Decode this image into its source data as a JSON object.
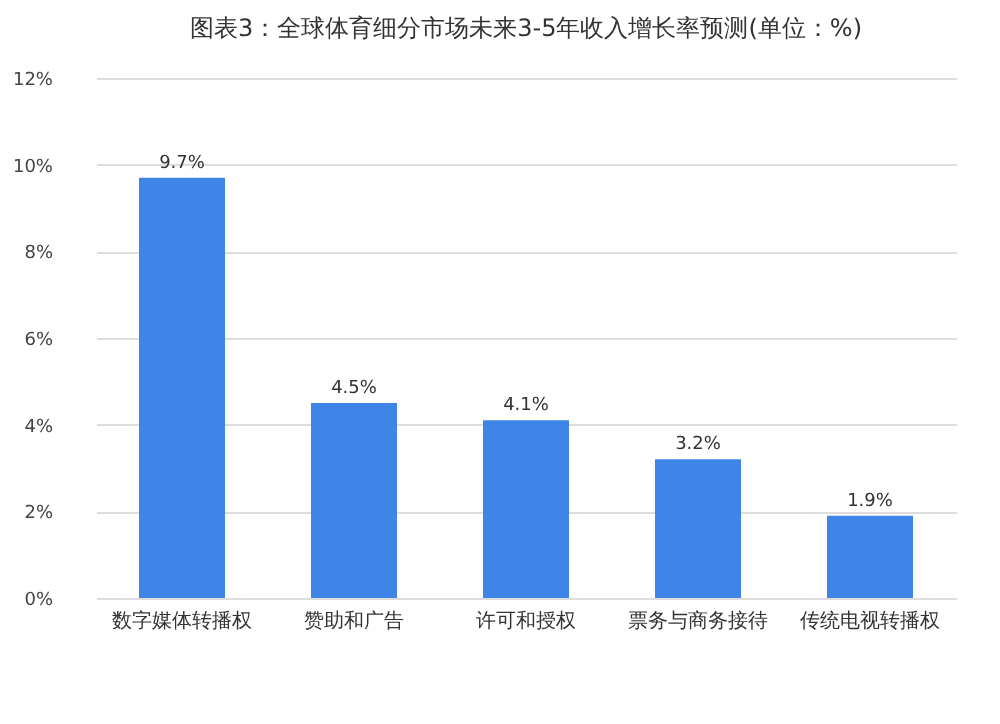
{
  "chart_data": {
    "type": "bar",
    "title": "图表3：全球体育细分市场未来3-5年收入增长率预测(单位：%)",
    "categories": [
      "数字媒体转播权",
      "赞助和广告",
      "许可和授权",
      "票务与商务接待",
      "传统电视转播权"
    ],
    "values": [
      9.7,
      4.5,
      4.1,
      3.2,
      1.9
    ],
    "value_labels": [
      "9.7%",
      "4.5%",
      "4.1%",
      "3.2%",
      "1.9%"
    ],
    "color": "#3f85e8",
    "ylim": [
      0,
      12
    ],
    "yticks": [
      {
        "value": 0,
        "label": "0%"
      },
      {
        "value": 2,
        "label": "2%"
      },
      {
        "value": 4,
        "label": "4%"
      },
      {
        "value": 6,
        "label": "6%"
      },
      {
        "value": 8,
        "label": "8%"
      },
      {
        "value": 10,
        "label": "10%"
      },
      {
        "value": 12,
        "label": "12%"
      }
    ],
    "grid": "y"
  }
}
